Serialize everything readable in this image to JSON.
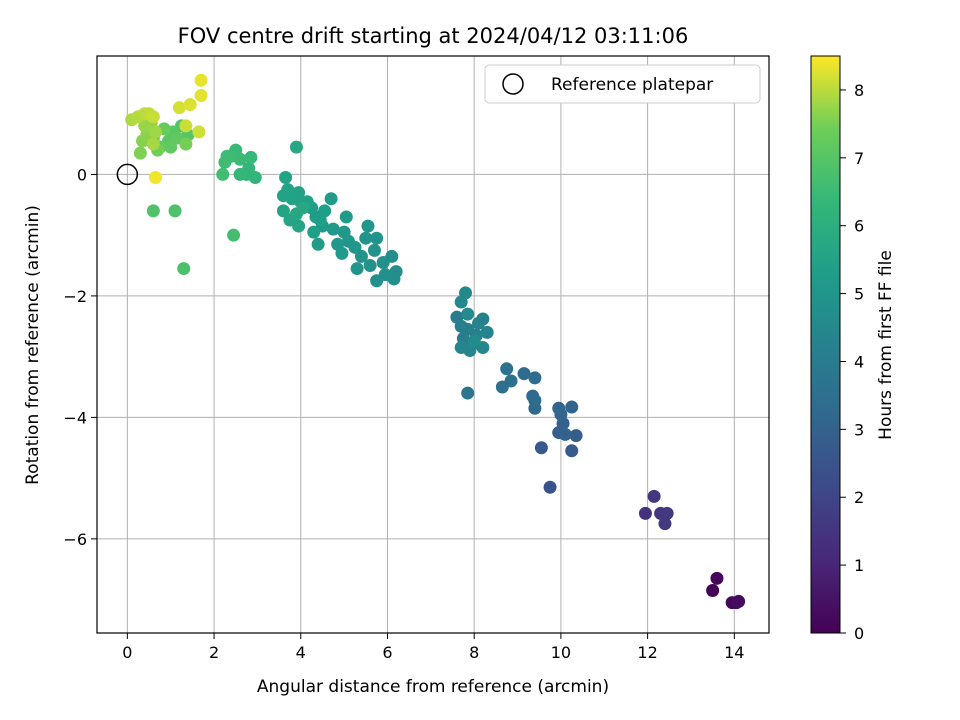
{
  "chart_data": {
    "type": "scatter",
    "title": "FOV centre drift starting at 2024/04/12 03:11:06",
    "xlabel": "Angular distance from reference (arcmin)",
    "ylabel": "Rotation from reference (arcmin)",
    "colorbar_label": "Hours from first FF file",
    "colormap": "viridis",
    "xlim": [
      -0.7,
      14.8
    ],
    "ylim": [
      -7.55,
      1.95
    ],
    "clim": [
      0,
      8.5
    ],
    "xticks": [
      0,
      2,
      4,
      6,
      8,
      10,
      12,
      14
    ],
    "yticks": [
      -6,
      -4,
      -2,
      0
    ],
    "cticks": [
      0,
      1,
      2,
      3,
      4,
      5,
      6,
      7,
      8
    ],
    "grid": true,
    "legend": {
      "position": "upper-right",
      "entries": [
        {
          "label": "Reference platepar",
          "marker": "open-circle"
        }
      ]
    },
    "reference_point": {
      "x": 0,
      "y": 0
    },
    "points": [
      {
        "x": 13.5,
        "y": -6.85,
        "c": 0.1
      },
      {
        "x": 13.6,
        "y": -6.65,
        "c": 0.15
      },
      {
        "x": 13.95,
        "y": -7.05,
        "c": 0.2
      },
      {
        "x": 14.05,
        "y": -7.05,
        "c": 0.25
      },
      {
        "x": 14.1,
        "y": -7.03,
        "c": 0.3
      },
      {
        "x": 11.95,
        "y": -5.58,
        "c": 1.4
      },
      {
        "x": 12.15,
        "y": -5.3,
        "c": 1.5
      },
      {
        "x": 12.3,
        "y": -5.58,
        "c": 1.55
      },
      {
        "x": 12.45,
        "y": -5.58,
        "c": 1.6
      },
      {
        "x": 12.4,
        "y": -5.75,
        "c": 1.65
      },
      {
        "x": 9.75,
        "y": -5.15,
        "c": 2.5
      },
      {
        "x": 9.55,
        "y": -4.5,
        "c": 2.7
      },
      {
        "x": 10.25,
        "y": -4.55,
        "c": 2.75
      },
      {
        "x": 10.35,
        "y": -4.3,
        "c": 2.85
      },
      {
        "x": 9.95,
        "y": -4.25,
        "c": 2.9
      },
      {
        "x": 10.05,
        "y": -4.1,
        "c": 2.95
      },
      {
        "x": 10.1,
        "y": -4.28,
        "c": 3.0
      },
      {
        "x": 9.95,
        "y": -3.85,
        "c": 3.05
      },
      {
        "x": 10.25,
        "y": -3.83,
        "c": 3.1
      },
      {
        "x": 10.0,
        "y": -3.95,
        "c": 3.15
      },
      {
        "x": 9.4,
        "y": -3.85,
        "c": 3.2
      },
      {
        "x": 9.35,
        "y": -3.65,
        "c": 3.25
      },
      {
        "x": 9.4,
        "y": -3.72,
        "c": 3.3
      },
      {
        "x": 9.15,
        "y": -3.28,
        "c": 3.35
      },
      {
        "x": 9.4,
        "y": -3.35,
        "c": 3.4
      },
      {
        "x": 8.65,
        "y": -3.5,
        "c": 3.5
      },
      {
        "x": 8.85,
        "y": -3.4,
        "c": 3.55
      },
      {
        "x": 8.75,
        "y": -3.2,
        "c": 3.6
      },
      {
        "x": 7.85,
        "y": -3.6,
        "c": 3.7
      },
      {
        "x": 7.6,
        "y": -2.35,
        "c": 4.0
      },
      {
        "x": 7.7,
        "y": -2.5,
        "c": 4.05
      },
      {
        "x": 7.75,
        "y": -2.7,
        "c": 4.1
      },
      {
        "x": 7.85,
        "y": -2.55,
        "c": 4.12
      },
      {
        "x": 7.95,
        "y": -2.8,
        "c": 4.15
      },
      {
        "x": 8.05,
        "y": -2.65,
        "c": 4.2
      },
      {
        "x": 8.1,
        "y": -2.45,
        "c": 4.25
      },
      {
        "x": 8.2,
        "y": -2.38,
        "c": 4.3
      },
      {
        "x": 8.3,
        "y": -2.6,
        "c": 4.35
      },
      {
        "x": 8.2,
        "y": -2.85,
        "c": 4.4
      },
      {
        "x": 7.9,
        "y": -2.9,
        "c": 4.42
      },
      {
        "x": 7.7,
        "y": -2.85,
        "c": 4.45
      },
      {
        "x": 7.8,
        "y": -1.95,
        "c": 4.5
      },
      {
        "x": 7.7,
        "y": -2.1,
        "c": 4.52
      },
      {
        "x": 7.85,
        "y": -2.3,
        "c": 4.55
      },
      {
        "x": 8.0,
        "y": -2.75,
        "c": 4.58
      },
      {
        "x": 6.1,
        "y": -1.35,
        "c": 4.7
      },
      {
        "x": 6.2,
        "y": -1.6,
        "c": 4.72
      },
      {
        "x": 6.15,
        "y": -1.72,
        "c": 4.75
      },
      {
        "x": 5.95,
        "y": -1.65,
        "c": 4.78
      },
      {
        "x": 5.75,
        "y": -1.75,
        "c": 4.8
      },
      {
        "x": 5.9,
        "y": -1.45,
        "c": 4.82
      },
      {
        "x": 5.7,
        "y": -1.25,
        "c": 4.85
      },
      {
        "x": 5.6,
        "y": -1.5,
        "c": 4.88
      },
      {
        "x": 5.4,
        "y": -1.35,
        "c": 4.9
      },
      {
        "x": 5.3,
        "y": -1.55,
        "c": 4.92
      },
      {
        "x": 5.5,
        "y": -1.05,
        "c": 4.95
      },
      {
        "x": 5.75,
        "y": -1.05,
        "c": 4.98
      },
      {
        "x": 5.55,
        "y": -0.85,
        "c": 5.0
      },
      {
        "x": 5.25,
        "y": -1.2,
        "c": 5.02
      },
      {
        "x": 5.1,
        "y": -1.1,
        "c": 5.05
      },
      {
        "x": 5.0,
        "y": -0.95,
        "c": 5.08
      },
      {
        "x": 4.85,
        "y": -1.15,
        "c": 5.1
      },
      {
        "x": 4.75,
        "y": -0.9,
        "c": 5.12
      },
      {
        "x": 4.95,
        "y": -1.3,
        "c": 5.15
      },
      {
        "x": 5.05,
        "y": -0.7,
        "c": 5.18
      },
      {
        "x": 4.7,
        "y": -0.4,
        "c": 5.2
      },
      {
        "x": 4.4,
        "y": -1.15,
        "c": 5.22
      },
      {
        "x": 4.5,
        "y": -0.85,
        "c": 5.25
      },
      {
        "x": 4.35,
        "y": -0.7,
        "c": 5.28
      },
      {
        "x": 4.25,
        "y": -0.55,
        "c": 5.3
      },
      {
        "x": 4.55,
        "y": -0.6,
        "c": 5.32
      },
      {
        "x": 4.45,
        "y": -0.75,
        "c": 5.35
      },
      {
        "x": 4.3,
        "y": -0.95,
        "c": 5.38
      },
      {
        "x": 4.15,
        "y": -0.45,
        "c": 5.4
      },
      {
        "x": 4.0,
        "y": -0.45,
        "c": 5.42
      },
      {
        "x": 3.95,
        "y": -0.3,
        "c": 5.45
      },
      {
        "x": 3.8,
        "y": -0.4,
        "c": 5.48
      },
      {
        "x": 3.7,
        "y": -0.25,
        "c": 5.5
      },
      {
        "x": 3.6,
        "y": -0.35,
        "c": 5.52
      },
      {
        "x": 3.65,
        "y": -0.05,
        "c": 5.55
      },
      {
        "x": 3.6,
        "y": -0.6,
        "c": 5.58
      },
      {
        "x": 3.75,
        "y": -0.75,
        "c": 5.6
      },
      {
        "x": 3.95,
        "y": -0.85,
        "c": 5.62
      },
      {
        "x": 3.9,
        "y": -0.65,
        "c": 5.65
      },
      {
        "x": 4.05,
        "y": -0.55,
        "c": 5.68
      },
      {
        "x": 3.9,
        "y": 0.45,
        "c": 5.7
      },
      {
        "x": 2.75,
        "y": 0.0,
        "c": 6.2
      },
      {
        "x": 2.95,
        "y": -0.05,
        "c": 6.25
      },
      {
        "x": 2.8,
        "y": 0.1,
        "c": 6.3
      },
      {
        "x": 2.6,
        "y": 0.0,
        "c": 6.35
      },
      {
        "x": 2.85,
        "y": 0.28,
        "c": 6.4
      },
      {
        "x": 2.5,
        "y": 0.4,
        "c": 6.45
      },
      {
        "x": 2.6,
        "y": 0.25,
        "c": 6.5
      },
      {
        "x": 2.4,
        "y": 0.3,
        "c": 6.52
      },
      {
        "x": 2.3,
        "y": 0.3,
        "c": 6.55
      },
      {
        "x": 2.25,
        "y": 0.2,
        "c": 6.58
      },
      {
        "x": 2.2,
        "y": 0.0,
        "c": 6.6
      },
      {
        "x": 2.45,
        "y": -1.0,
        "c": 6.65
      },
      {
        "x": 1.3,
        "y": -1.55,
        "c": 6.8
      },
      {
        "x": 1.1,
        "y": -0.6,
        "c": 6.85
      },
      {
        "x": 0.6,
        "y": -0.6,
        "c": 6.9
      },
      {
        "x": 1.25,
        "y": 0.8,
        "c": 6.95
      },
      {
        "x": 1.4,
        "y": 0.65,
        "c": 7.0
      },
      {
        "x": 1.05,
        "y": 0.7,
        "c": 7.05
      },
      {
        "x": 0.95,
        "y": 0.55,
        "c": 7.1
      },
      {
        "x": 1.15,
        "y": 0.6,
        "c": 7.15
      },
      {
        "x": 1.0,
        "y": 0.45,
        "c": 7.2
      },
      {
        "x": 0.75,
        "y": 0.45,
        "c": 7.25
      },
      {
        "x": 0.85,
        "y": 0.75,
        "c": 7.3
      },
      {
        "x": 0.6,
        "y": 0.6,
        "c": 7.35
      },
      {
        "x": 0.5,
        "y": 0.75,
        "c": 7.4
      },
      {
        "x": 0.7,
        "y": 0.4,
        "c": 7.45
      },
      {
        "x": 1.35,
        "y": 0.5,
        "c": 7.5
      },
      {
        "x": 0.3,
        "y": 0.35,
        "c": 7.55
      },
      {
        "x": 0.35,
        "y": 0.55,
        "c": 7.6
      },
      {
        "x": 0.45,
        "y": 0.65,
        "c": 7.65
      },
      {
        "x": 0.55,
        "y": 0.85,
        "c": 7.7
      },
      {
        "x": 0.4,
        "y": 0.8,
        "c": 7.75
      },
      {
        "x": 0.65,
        "y": 0.7,
        "c": 7.8
      },
      {
        "x": 0.6,
        "y": 0.5,
        "c": 7.85
      },
      {
        "x": 0.1,
        "y": 0.9,
        "c": 7.9
      },
      {
        "x": 0.25,
        "y": 0.95,
        "c": 7.95
      },
      {
        "x": 0.4,
        "y": 1.0,
        "c": 8.0
      },
      {
        "x": 0.5,
        "y": 1.0,
        "c": 8.05
      },
      {
        "x": 0.6,
        "y": 0.95,
        "c": 8.1
      },
      {
        "x": 1.35,
        "y": 0.8,
        "c": 8.12
      },
      {
        "x": 1.65,
        "y": 0.7,
        "c": 8.15
      },
      {
        "x": 1.2,
        "y": 1.1,
        "c": 8.2
      },
      {
        "x": 1.45,
        "y": 1.15,
        "c": 8.25
      },
      {
        "x": 1.7,
        "y": 1.3,
        "c": 8.3
      },
      {
        "x": 1.7,
        "y": 1.55,
        "c": 8.35
      },
      {
        "x": 0.65,
        "y": -0.05,
        "c": 8.4
      }
    ]
  }
}
